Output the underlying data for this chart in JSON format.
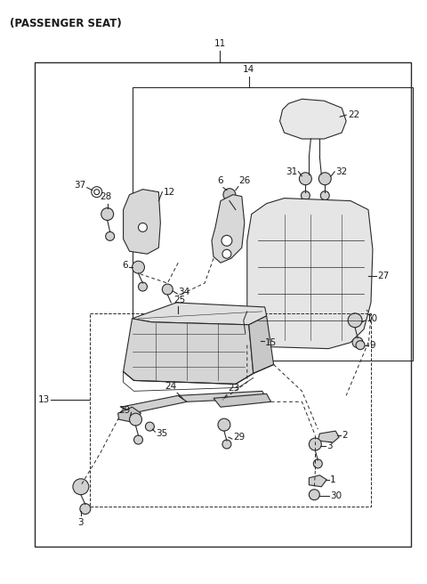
{
  "title": "(PASSENGER SEAT)",
  "bg_color": "#ffffff",
  "line_color": "#2a2a2a",
  "label_color": "#1a1a1a",
  "figsize": [
    4.8,
    6.56
  ],
  "dpi": 100
}
